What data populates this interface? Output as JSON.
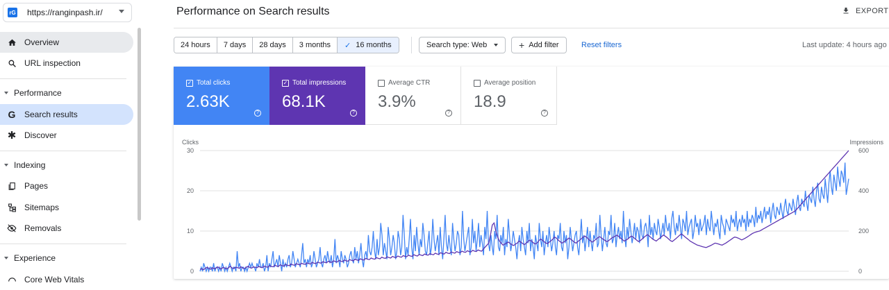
{
  "property": {
    "label": "https://ranginpash.ir/",
    "icon": "site-favicon-icon"
  },
  "sidebar": {
    "items": [
      {
        "label": "Overview",
        "icon": "home-icon"
      },
      {
        "label": "URL inspection",
        "icon": "search-icon"
      },
      {
        "section": "Performance"
      },
      {
        "label": "Search results",
        "icon": "google-g-icon"
      },
      {
        "label": "Discover",
        "icon": "asterisk-icon"
      },
      {
        "section": "Indexing"
      },
      {
        "label": "Pages",
        "icon": "pages-icon"
      },
      {
        "label": "Sitemaps",
        "icon": "sitemap-icon"
      },
      {
        "label": "Removals",
        "icon": "eye-off-icon"
      },
      {
        "section": "Experience"
      },
      {
        "label": "Core Web Vitals",
        "icon": "gauge-icon"
      }
    ]
  },
  "header": {
    "title": "Performance on Search results",
    "export_label": "EXPORT"
  },
  "filters": {
    "date_ranges": [
      "24 hours",
      "7 days",
      "28 days",
      "3 months",
      "16 months"
    ],
    "selected_range": "16 months",
    "search_type": "Search type: Web",
    "add_filter": "Add filter",
    "reset": "Reset filters",
    "last_update": "Last update: 4 hours ago"
  },
  "metrics": {
    "clicks": {
      "label": "Total clicks",
      "value": "2.63K",
      "checked": true
    },
    "impressions": {
      "label": "Total impressions",
      "value": "68.1K",
      "checked": true
    },
    "ctr": {
      "label": "Average CTR",
      "value": "3.9%",
      "checked": false
    },
    "position": {
      "label": "Average position",
      "value": "18.9",
      "checked": false
    }
  },
  "colors": {
    "clicks": "#4285f4",
    "impressions": "#5e35b1",
    "accent": "#1a73e8"
  },
  "chart_data": {
    "type": "line",
    "left_axis": {
      "label": "Clicks",
      "ticks": [
        "0",
        "10",
        "20",
        "30"
      ],
      "range": [
        0,
        30
      ]
    },
    "right_axis": {
      "label": "Impressions",
      "ticks": [
        "0",
        "200",
        "400",
        "600"
      ],
      "range": [
        0,
        600
      ]
    },
    "series": [
      {
        "name": "Clicks",
        "axis": "left",
        "values": [
          0,
          1,
          0,
          2,
          1,
          0,
          1,
          0,
          1,
          1,
          0,
          2,
          0,
          1,
          1,
          0,
          1,
          0,
          2,
          1,
          0,
          1,
          0,
          1,
          2,
          1,
          0,
          1,
          1,
          0,
          5,
          1,
          2,
          0,
          1,
          1,
          0,
          1,
          0,
          1,
          2,
          1,
          2,
          1,
          1,
          0,
          2,
          1,
          3,
          1,
          1,
          2,
          0,
          1,
          4,
          0,
          2,
          1,
          3,
          5,
          1,
          2,
          3,
          1,
          4,
          2,
          0,
          3,
          1,
          2,
          1,
          3,
          4,
          1,
          2,
          5,
          3,
          1,
          2,
          3,
          2,
          1,
          4,
          7,
          2,
          3,
          1,
          3,
          2,
          4,
          1,
          2,
          5,
          3,
          1,
          2,
          3,
          6,
          2,
          1,
          3,
          4,
          2,
          5,
          3,
          2,
          4,
          1,
          3,
          8,
          2,
          4,
          3,
          1,
          5,
          3,
          2,
          4,
          3,
          1,
          2,
          4,
          5,
          3,
          2,
          6,
          3,
          5,
          2,
          4,
          7,
          3,
          1,
          4,
          5,
          3,
          9,
          5,
          4,
          6,
          10,
          5,
          3,
          8,
          4,
          6,
          12,
          9,
          4,
          7,
          5,
          3,
          11,
          8,
          4,
          6,
          9,
          7,
          3,
          5,
          10,
          8,
          4,
          6,
          14,
          9,
          3,
          6,
          4,
          8,
          13,
          6,
          3,
          9,
          5,
          11,
          7,
          4,
          8,
          6,
          12,
          9,
          5,
          4,
          7,
          10,
          4,
          6,
          13,
          8,
          5,
          7,
          9,
          4,
          11,
          6,
          3,
          8,
          14,
          7,
          5,
          9,
          6,
          4,
          12,
          8,
          5,
          7,
          10,
          9,
          4,
          6,
          15,
          8,
          5,
          7,
          9,
          11,
          4,
          6,
          13,
          7,
          10,
          5,
          8,
          12,
          6,
          9,
          7,
          4,
          11,
          8,
          15,
          7,
          5,
          9,
          6,
          4,
          10,
          8,
          14,
          6,
          5,
          9,
          7,
          11,
          4,
          8,
          6,
          13,
          9,
          5,
          7,
          10,
          8,
          6,
          3,
          7,
          9,
          5,
          11,
          8,
          6,
          4,
          10,
          7,
          12,
          5,
          8,
          6,
          3,
          9,
          7,
          5,
          12,
          8,
          6,
          10,
          4,
          7,
          9,
          6,
          11,
          8,
          5,
          7,
          10,
          6,
          4,
          9,
          8,
          12,
          6,
          5,
          10,
          7,
          9,
          3,
          6,
          11,
          8,
          5,
          7,
          9,
          10,
          6,
          4,
          8,
          13,
          7,
          9,
          5,
          8,
          11,
          6,
          10,
          7,
          5,
          9,
          8,
          12,
          6,
          7,
          14,
          9,
          5,
          8,
          11,
          7,
          6,
          10,
          9,
          14,
          7,
          8,
          12,
          6,
          9,
          11,
          8,
          10,
          7,
          15,
          9,
          6,
          11,
          8,
          13,
          10,
          7,
          9,
          12,
          8,
          11,
          10,
          7,
          13,
          9,
          8,
          11,
          12,
          10,
          6,
          14,
          9,
          11,
          8,
          12,
          10,
          9,
          13,
          11,
          8,
          10,
          12,
          9,
          14,
          11,
          10,
          12,
          8,
          13,
          15,
          11,
          9,
          12,
          10,
          14,
          11,
          8,
          13,
          12,
          10,
          15,
          9,
          11,
          12,
          13,
          8,
          10,
          14,
          11,
          12,
          9,
          13,
          10,
          11,
          12,
          14,
          9,
          13,
          11,
          10,
          15,
          12,
          9,
          12,
          11,
          13,
          10,
          8,
          14,
          12,
          11,
          9,
          13,
          12,
          11,
          10,
          14,
          12,
          13,
          11,
          15,
          10,
          12,
          13,
          11,
          14,
          12,
          13,
          10,
          15,
          11,
          13,
          12,
          14,
          13,
          11,
          16,
          12,
          14,
          13,
          15,
          12,
          14,
          16,
          13,
          15,
          14,
          16,
          12,
          15,
          17,
          14,
          13,
          16,
          15,
          14,
          17,
          15,
          13,
          16,
          18,
          15,
          14,
          17,
          16,
          15,
          18,
          16,
          14,
          17,
          19,
          16,
          15,
          18,
          17,
          16,
          20,
          17,
          15,
          19,
          18,
          17,
          21,
          18,
          16,
          20,
          22,
          18,
          17,
          21,
          19,
          18,
          23,
          20,
          17,
          22,
          25,
          21,
          19,
          24,
          22,
          20,
          26,
          23,
          21,
          25,
          24,
          22,
          27,
          19,
          21,
          23
        ]
      },
      {
        "name": "Impressions",
        "axis": "right",
        "values": [
          10,
          12,
          8,
          15,
          20,
          14,
          10,
          18,
          12,
          16,
          22,
          14,
          12,
          20,
          15,
          12,
          18,
          25,
          16,
          14,
          20,
          18,
          15,
          22,
          16,
          14,
          20,
          25,
          18,
          16,
          22,
          20,
          18,
          24,
          20,
          18,
          26,
          22,
          20,
          28,
          24,
          22,
          30,
          26,
          24,
          32,
          28,
          26,
          34,
          30,
          28,
          36,
          32,
          30,
          38,
          34,
          32,
          40,
          36,
          34,
          42,
          38,
          36,
          44,
          40,
          38,
          46,
          42,
          40,
          48,
          44,
          42,
          50,
          46,
          44,
          52,
          48,
          46,
          54,
          50,
          48,
          56,
          52,
          50,
          58,
          54,
          52,
          60,
          56,
          54,
          62,
          58,
          56,
          64,
          60,
          58,
          66,
          62,
          60,
          68,
          64,
          62,
          70,
          66,
          64,
          72,
          68,
          66,
          74,
          70,
          68,
          76,
          72,
          70,
          78,
          74,
          72,
          80,
          76,
          74,
          82,
          78,
          76,
          84,
          80,
          78,
          86,
          82,
          80,
          88,
          84,
          82,
          90,
          86,
          84,
          92,
          88,
          86,
          94,
          90,
          88,
          96,
          92,
          90,
          98,
          94,
          92,
          100,
          96,
          94,
          102,
          98,
          96,
          104,
          100,
          98,
          106,
          102,
          100,
          110,
          120,
          130,
          140,
          180,
          230,
          240,
          200,
          170,
          150,
          140,
          130,
          135,
          140,
          145,
          138,
          132,
          128,
          135,
          140,
          150,
          145,
          138,
          132,
          140,
          148,
          155,
          150,
          142,
          135,
          140,
          150,
          160,
          155,
          148,
          140,
          138,
          145,
          152,
          160,
          170,
          165,
          155,
          148,
          140,
          145,
          150,
          158,
          165,
          160,
          152,
          145,
          140,
          148,
          155,
          162,
          170,
          175,
          168,
          160,
          152,
          145,
          150,
          158,
          165,
          172,
          168,
          160,
          155,
          148,
          150,
          158,
          165,
          170,
          175,
          180,
          172,
          165,
          158,
          150,
          155,
          160,
          168,
          175,
          170,
          162,
          155,
          148,
          152,
          160,
          168,
          175,
          182,
          176,
          168,
          160,
          155,
          150,
          158,
          165,
          172,
          180,
          175,
          168,
          160,
          152,
          148,
          155,
          162,
          170,
          178,
          185,
          180,
          172,
          165,
          158,
          150,
          145,
          140,
          135,
          130,
          128,
          125,
          122,
          120,
          118,
          122,
          126,
          130,
          135,
          140,
          138,
          135,
          132,
          130,
          135,
          140,
          146,
          152,
          158,
          165,
          170,
          168,
          165,
          160,
          156,
          160,
          165,
          170,
          176,
          182,
          188,
          192,
          195,
          198,
          200,
          205,
          210,
          215,
          220,
          225,
          230,
          235,
          240,
          245,
          250,
          255,
          260,
          265,
          270,
          275,
          280,
          285,
          290,
          295,
          300,
          310,
          320,
          330,
          340,
          350,
          360,
          370,
          380,
          390,
          400,
          410,
          420,
          430,
          440,
          450,
          460,
          470,
          480,
          490,
          500,
          510,
          520,
          530,
          540,
          550,
          560,
          570,
          580,
          590,
          600
        ]
      }
    ]
  }
}
